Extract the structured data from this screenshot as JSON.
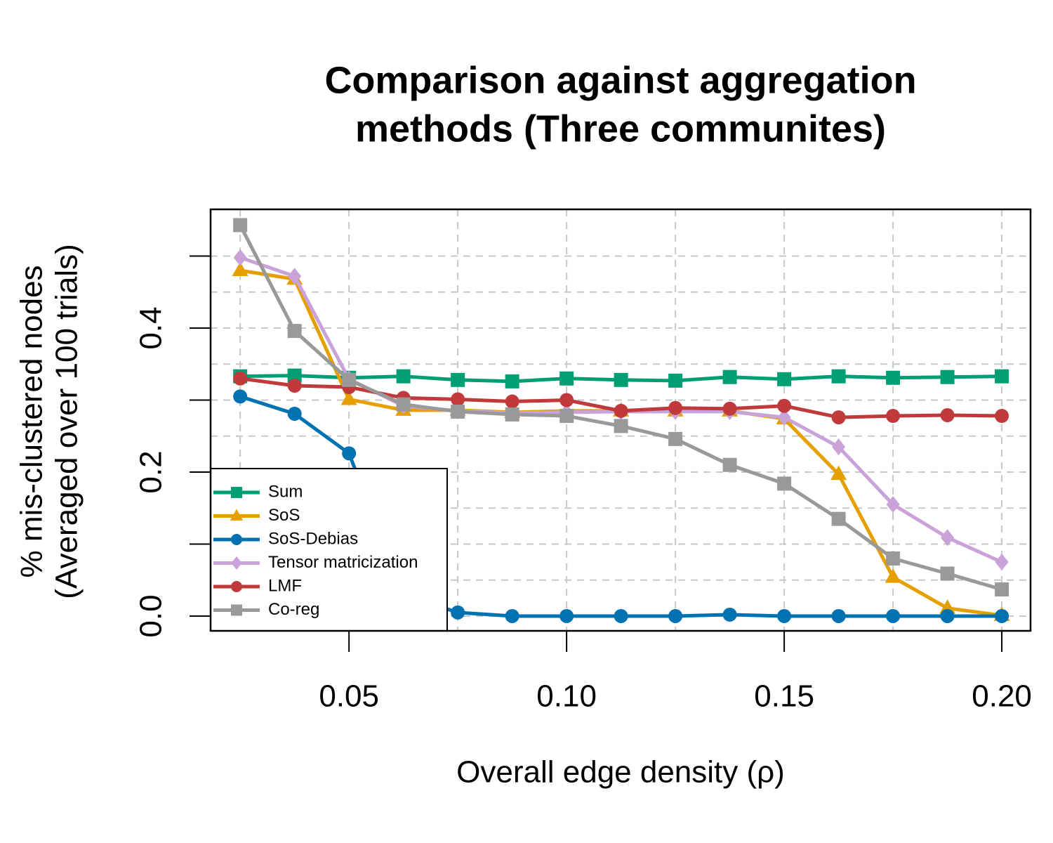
{
  "chart_data": {
    "type": "line",
    "title": [
      "Comparison against aggregation",
      "methods (Three communites)"
    ],
    "xlabel": "Overall edge density (ρ)",
    "ylabel": [
      "% mis-clustered nodes",
      "(Averaged over 100 trials)"
    ],
    "x": [
      0.025,
      0.0375,
      0.05,
      0.0625,
      0.075,
      0.0875,
      0.1,
      0.1125,
      0.125,
      0.1375,
      0.15,
      0.1625,
      0.175,
      0.1875,
      0.2
    ],
    "xlim": [
      0.0182,
      0.2066
    ],
    "xticks": [
      {
        "value": 0.05,
        "label": "0.05"
      },
      {
        "value": 0.1,
        "label": "0.10"
      },
      {
        "value": 0.15,
        "label": "0.15"
      },
      {
        "value": 0.2,
        "label": "0.20"
      }
    ],
    "xgrid": [
      0.025,
      0.05,
      0.075,
      0.1,
      0.125,
      0.15,
      0.175,
      0.2
    ],
    "ylim": [
      -0.0205,
      0.5649
    ],
    "yticks": [
      {
        "value": 0,
        "label": "0.0"
      },
      {
        "value": 0.2,
        "label": "0.2"
      },
      {
        "value": 0.4,
        "label": "0.4"
      }
    ],
    "yminor_ticks": [
      0.1,
      0.3,
      0.5
    ],
    "ygrid": [
      0,
      0.05,
      0.1,
      0.15,
      0.2,
      0.25,
      0.3,
      0.35,
      0.4,
      0.45,
      0.5
    ],
    "grid": true,
    "legend_position": "bottomleft",
    "series": [
      {
        "name": "Sum",
        "color": "#009e73",
        "marker": "square",
        "values": [
          0.333,
          0.334,
          0.331,
          0.333,
          0.328,
          0.326,
          0.33,
          0.328,
          0.327,
          0.332,
          0.329,
          0.333,
          0.331,
          0.332,
          0.333
        ]
      },
      {
        "name": "SoS",
        "color": "#e69f00",
        "marker": "triangle",
        "values": [
          0.48,
          0.468,
          0.301,
          0.286,
          0.286,
          0.283,
          0.285,
          0.285,
          0.285,
          0.285,
          0.274,
          0.197,
          0.054,
          0.011,
          0.001
        ]
      },
      {
        "name": "SoS-Debias",
        "color": "#0072b2",
        "marker": "circle",
        "values": [
          0.305,
          0.281,
          0.226,
          0.03,
          0.005,
          0.0,
          0.0,
          0.0,
          0.0,
          0.002,
          0.0,
          0.0,
          0.0,
          0.0,
          0.0
        ]
      },
      {
        "name": "Tensor matricization",
        "color": "#c8a2d8",
        "marker": "diamond",
        "values": [
          0.498,
          0.472,
          0.329,
          0.292,
          0.285,
          0.282,
          0.283,
          0.284,
          0.284,
          0.284,
          0.276,
          0.235,
          0.155,
          0.109,
          0.075
        ]
      },
      {
        "name": "LMF",
        "color": "#c0393b",
        "marker": "circle",
        "values": [
          0.33,
          0.32,
          0.318,
          0.303,
          0.301,
          0.298,
          0.3,
          0.285,
          0.289,
          0.288,
          0.292,
          0.276,
          0.278,
          0.279,
          0.278
        ]
      },
      {
        "name": "Co-reg",
        "color": "#999999",
        "marker": "square",
        "values": [
          0.543,
          0.396,
          0.328,
          0.294,
          0.284,
          0.28,
          0.278,
          0.264,
          0.246,
          0.21,
          0.184,
          0.135,
          0.08,
          0.059,
          0.037
        ]
      }
    ]
  }
}
